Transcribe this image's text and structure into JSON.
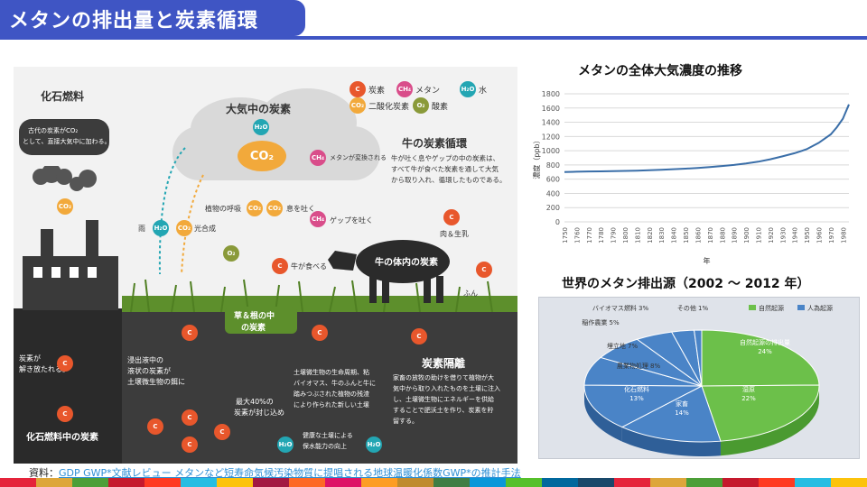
{
  "slide": {
    "title": "メタンの排出量と炭素循環"
  },
  "diagram": {
    "fossil_title": "化石燃料",
    "fossil_bubble_1": "古代の炭素がCO₂",
    "fossil_bubble_2": "として、直接大気中に加わる。",
    "fossil_release_1": "炭素が",
    "fossil_release_2": "解き放たれる。",
    "fossil_ground": "化石燃料中の炭素",
    "air_carbon": "大気中の炭素",
    "rain": "雨",
    "photosynthesis": "光合成",
    "plant_respiration": "植物の呼吸",
    "exhale": "息を吐く",
    "burp": "ゲップを吐く",
    "methane_converted": "メタンが変換される",
    "cow_eats": "牛が食べる",
    "cow_body": "牛の体内の炭素",
    "meat_milk": "肉＆生乳",
    "dung": "ふん",
    "grass_1": "草＆根の中",
    "grass_2": "の炭素",
    "cycle_title": "牛の炭素循環",
    "cycle_text_1": "牛が吐く息やゲップの中の炭素は、",
    "cycle_text_2": "すべて牛が食べた炭素を通して大気",
    "cycle_text_3": "から取り入れ、循環したものである。",
    "sequestration_title": "炭素隔離",
    "seq_text_1": "家畜の放牧の助けを借りて植物が大",
    "seq_text_2": "気中から取り入れたものを土壌に注入",
    "seq_text_3": "し、土壌微生物にエネルギーを供給",
    "seq_text_4": "することで肥沃土を作り、炭素を貯",
    "seq_text_5": "留する。",
    "exudate_1": "浸出液中の",
    "exudate_2": "液状の炭素が",
    "exudate_3": "土壌微生物の餌に",
    "locked_1": "最大40%の",
    "locked_2": "炭素が封じ込め",
    "microbe_1": "土壌微生物の生命周期、粘",
    "microbe_2": "バイオマス、牛のふんと牛に",
    "microbe_3": "踏みつぶされた植物の残渣",
    "microbe_4": "により作られた新しい土壌",
    "healthy_1": "健康な土壌による",
    "healthy_2": "保水能力の向上",
    "legend": {
      "c": "炭素",
      "ch4": "メタン",
      "h2o": "水",
      "co2": "二酸化炭素",
      "o2": "酸素"
    },
    "chem": {
      "c": "C",
      "ch4": "CH₄",
      "h2o": "H₂O",
      "co2": "CO₂",
      "o2": "O₂"
    }
  },
  "line_chart": {
    "title": "メタンの全体大気濃度の推移",
    "ylabel": "濃度（ppb）",
    "xlabel": "年",
    "yticks": [
      "0",
      "200",
      "400",
      "600",
      "800",
      "1000",
      "1200",
      "1400",
      "1600",
      "1800"
    ],
    "xticks": [
      "1750",
      "1760",
      "1770",
      "1780",
      "1790",
      "1800",
      "1810",
      "1820",
      "1830",
      "1840",
      "1850",
      "1860",
      "1870",
      "1880",
      "1890",
      "1900",
      "1910",
      "1920",
      "1930",
      "1940",
      "1950",
      "1960",
      "1970",
      "1980"
    ]
  },
  "pie_chart": {
    "title": "世界のメタン排出源（2002 ～ 2012 年）",
    "legend": [
      "自然起源",
      "人為起源"
    ],
    "labels": [
      {
        "name": "自然起源の排出量",
        "pct": "24%"
      },
      {
        "name": "湿原",
        "pct": "22%"
      },
      {
        "name": "家畜",
        "pct": "14%"
      },
      {
        "name": "化石燃料",
        "pct": "13%"
      },
      {
        "name": "農業物処理 8%"
      },
      {
        "name": "埋立地 7%"
      },
      {
        "name": "稲作農業 5%"
      },
      {
        "name": "バイオマス燃料 3%"
      },
      {
        "name": "その他 1%"
      }
    ]
  },
  "chart_data": [
    {
      "type": "line",
      "title": "メタンの全体大気濃度の推移",
      "xlabel": "年",
      "ylabel": "濃度（ppb）",
      "ylim": [
        0,
        1800
      ],
      "x": [
        1750,
        1760,
        1770,
        1780,
        1790,
        1800,
        1810,
        1820,
        1830,
        1840,
        1850,
        1860,
        1870,
        1880,
        1890,
        1900,
        1910,
        1920,
        1930,
        1940,
        1950,
        1960,
        1970,
        1975,
        1980,
        1985
      ],
      "series": [
        {
          "values": [
            700,
            705,
            708,
            710,
            713,
            716,
            720,
            726,
            733,
            740,
            748,
            757,
            770,
            785,
            800,
            820,
            845,
            880,
            920,
            965,
            1020,
            1110,
            1230,
            1330,
            1450,
            1650
          ]
        }
      ],
      "color": "#3a6ea8",
      "grid": true
    },
    {
      "type": "pie",
      "title": "世界のメタン排出源（2002 ～ 2012 年）",
      "categories": [
        "自然起源の排出量",
        "湿原",
        "家畜",
        "化石燃料",
        "農業物処理",
        "埋立地",
        "稲作農業",
        "バイオマス燃料",
        "その他"
      ],
      "values": [
        24,
        22,
        14,
        13,
        8,
        7,
        5,
        3,
        1
      ],
      "groups": [
        "自然起源",
        "自然起源",
        "人為起源",
        "人為起源",
        "人為起源",
        "人為起源",
        "人為起源",
        "人為起源",
        "人為起源"
      ],
      "legend": "top-right"
    }
  ],
  "source": {
    "prefix": "資料：",
    "link": "GDP GWP*文献レビュー メタンなど短寿命気候汚染物質に提唱される地球温暖化係数GWP*の推計手法"
  },
  "colors": {
    "title_bg": "#3f55c4",
    "natural": "#6cc04a",
    "anthropogenic": "#4a84c7",
    "stripes": [
      "#e5243b",
      "#dda63a",
      "#4c9f38",
      "#c5192d",
      "#ff3a21",
      "#26bde2",
      "#fcc30b",
      "#a21942",
      "#fd6925",
      "#dd1367",
      "#fd9d24",
      "#bf8b2e",
      "#3f7e44",
      "#0a97d9",
      "#56c02b",
      "#00689d",
      "#19486a",
      "#e5243b",
      "#dda63a",
      "#4c9f38",
      "#c5192d",
      "#ff3a21",
      "#26bde2",
      "#fcc30b"
    ]
  }
}
